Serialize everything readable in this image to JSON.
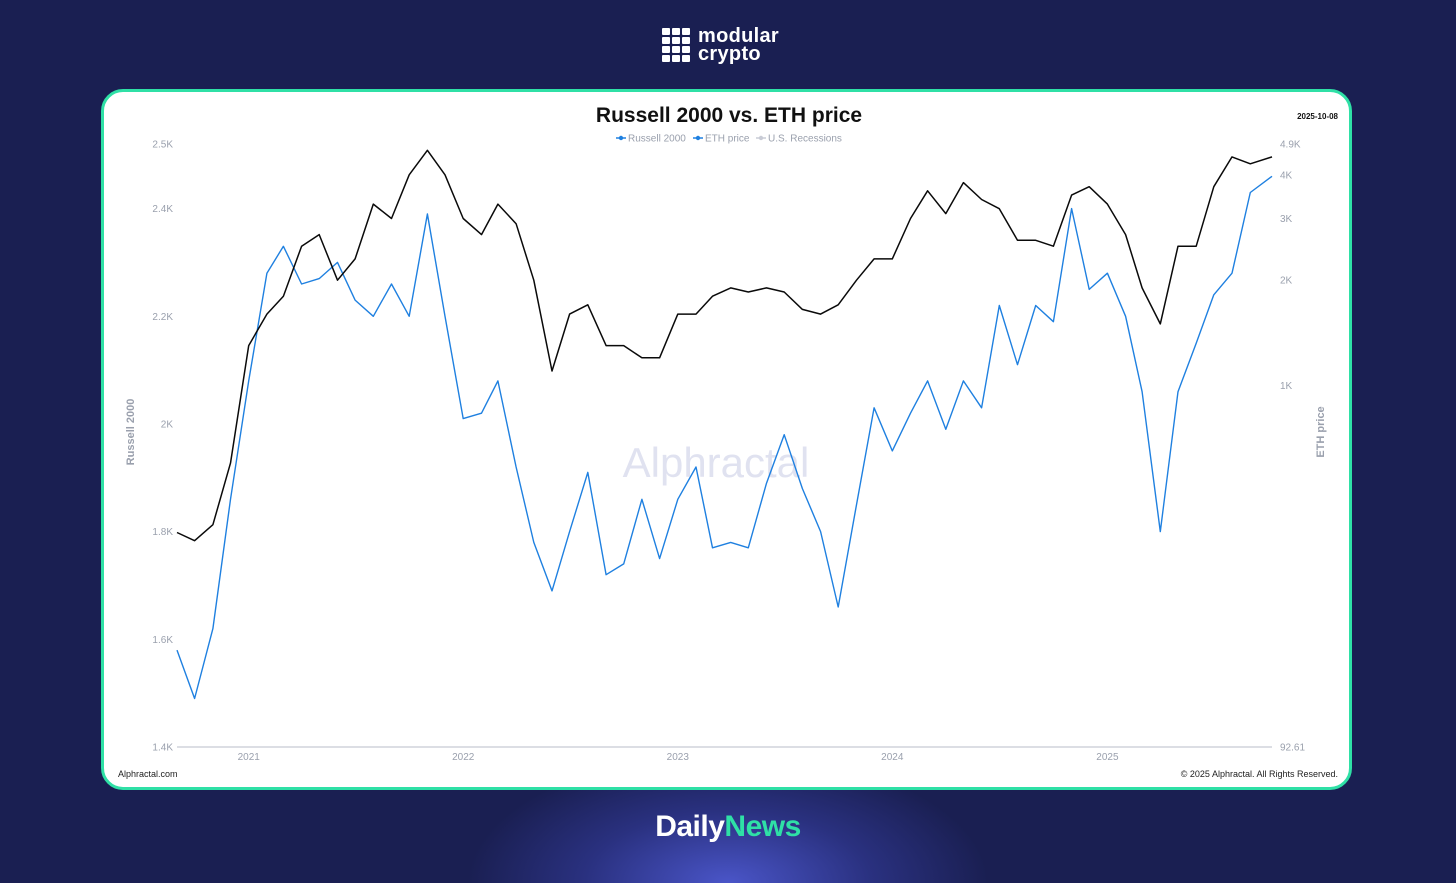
{
  "brand": {
    "line1": "modular",
    "line2": "crypto"
  },
  "footer": {
    "part1": "Daily",
    "part2": "News"
  },
  "colors": {
    "background": "#1a1f52",
    "card_border": "#2fe0a6",
    "russell": "#1f80e0",
    "eth": "#0a0a0a",
    "recessions": "#c9ccd6"
  },
  "chart_data": {
    "type": "line",
    "title": "Russell 2000 vs. ETH price",
    "date": "2025-10-08",
    "watermark": "Alphractal",
    "source": "Alphractal.com",
    "copyright": "© 2025 Alphractal. All Rights Reserved.",
    "legend": [
      "Russell 2000",
      "ETH price",
      "U.S. Recessions"
    ],
    "legend_position": "top-center",
    "grid": false,
    "x_ticks": [
      "2021",
      "2022",
      "2023",
      "2024",
      "2025"
    ],
    "x_range": [
      "2020-09-01",
      "2025-10-08"
    ],
    "y_left": {
      "label": "Russell 2000",
      "ticks": [
        "1.4K",
        "1.6K",
        "1.8K",
        "2K",
        "2.2K",
        "2.4K",
        "2.5K"
      ],
      "tick_values": [
        1400,
        1600,
        1800,
        2000,
        2200,
        2400,
        2520
      ],
      "range": [
        1400,
        2520
      ]
    },
    "y_right": {
      "label": "ETH price",
      "scale": "log",
      "ticks": [
        "92.61",
        "1K",
        "2K",
        "3K",
        "4K",
        "4.9K"
      ],
      "tick_values": [
        92.61,
        1000,
        2000,
        3000,
        4000,
        4900
      ],
      "range": [
        92.61,
        4900
      ]
    },
    "series": [
      {
        "name": "Russell 2000",
        "axis": "left",
        "x": [
          "2020-09-01",
          "2020-10-01",
          "2020-11-01",
          "2020-12-01",
          "2021-01-01",
          "2021-02-01",
          "2021-03-01",
          "2021-04-01",
          "2021-05-01",
          "2021-06-01",
          "2021-07-01",
          "2021-08-01",
          "2021-09-01",
          "2021-10-01",
          "2021-11-01",
          "2021-12-01",
          "2022-01-01",
          "2022-02-01",
          "2022-03-01",
          "2022-04-01",
          "2022-05-01",
          "2022-06-01",
          "2022-07-01",
          "2022-08-01",
          "2022-09-01",
          "2022-10-01",
          "2022-11-01",
          "2022-12-01",
          "2023-01-01",
          "2023-02-01",
          "2023-03-01",
          "2023-04-01",
          "2023-05-01",
          "2023-06-01",
          "2023-07-01",
          "2023-08-01",
          "2023-09-01",
          "2023-10-01",
          "2023-11-01",
          "2023-12-01",
          "2024-01-01",
          "2024-02-01",
          "2024-03-01",
          "2024-04-01",
          "2024-05-01",
          "2024-06-01",
          "2024-07-01",
          "2024-08-01",
          "2024-09-01",
          "2024-10-01",
          "2024-11-01",
          "2024-12-01",
          "2025-01-01",
          "2025-02-01",
          "2025-03-01",
          "2025-04-01",
          "2025-05-01",
          "2025-06-01",
          "2025-07-01",
          "2025-08-01",
          "2025-09-01",
          "2025-10-08"
        ],
        "values": [
          1580,
          1490,
          1620,
          1860,
          2080,
          2280,
          2330,
          2260,
          2270,
          2300,
          2230,
          2200,
          2260,
          2200,
          2390,
          2200,
          2010,
          2020,
          2080,
          1920,
          1780,
          1690,
          1800,
          1910,
          1720,
          1740,
          1860,
          1750,
          1860,
          1920,
          1770,
          1780,
          1770,
          1890,
          1980,
          1880,
          1800,
          1660,
          1850,
          2030,
          1950,
          2020,
          2080,
          1990,
          2080,
          2030,
          2220,
          2110,
          2220,
          2190,
          2400,
          2250,
          2280,
          2200,
          2060,
          1800,
          2060,
          2150,
          2240,
          2280,
          2430,
          2460
        ]
      },
      {
        "name": "ETH price",
        "axis": "right",
        "x": [
          "2020-09-01",
          "2020-10-01",
          "2020-11-01",
          "2020-12-01",
          "2021-01-01",
          "2021-02-01",
          "2021-03-01",
          "2021-04-01",
          "2021-05-01",
          "2021-06-01",
          "2021-07-01",
          "2021-08-01",
          "2021-09-01",
          "2021-10-01",
          "2021-11-01",
          "2021-12-01",
          "2022-01-01",
          "2022-02-01",
          "2022-03-01",
          "2022-04-01",
          "2022-05-01",
          "2022-06-01",
          "2022-07-01",
          "2022-08-01",
          "2022-09-01",
          "2022-10-01",
          "2022-11-01",
          "2022-12-01",
          "2023-01-01",
          "2023-02-01",
          "2023-03-01",
          "2023-04-01",
          "2023-05-01",
          "2023-06-01",
          "2023-07-01",
          "2023-08-01",
          "2023-09-01",
          "2023-10-01",
          "2023-11-01",
          "2023-12-01",
          "2024-01-01",
          "2024-02-01",
          "2024-03-01",
          "2024-04-01",
          "2024-05-01",
          "2024-06-01",
          "2024-07-01",
          "2024-08-01",
          "2024-09-01",
          "2024-10-01",
          "2024-11-01",
          "2024-12-01",
          "2025-01-01",
          "2025-02-01",
          "2025-03-01",
          "2025-04-01",
          "2025-05-01",
          "2025-06-01",
          "2025-07-01",
          "2025-08-01",
          "2025-09-01",
          "2025-10-08"
        ],
        "values": [
          380,
          360,
          400,
          600,
          1300,
          1600,
          1800,
          2500,
          2700,
          2000,
          2300,
          3300,
          3000,
          4000,
          4700,
          4000,
          3000,
          2700,
          3300,
          2900,
          2000,
          1100,
          1600,
          1700,
          1300,
          1300,
          1200,
          1200,
          1600,
          1600,
          1800,
          1900,
          1850,
          1900,
          1850,
          1650,
          1600,
          1700,
          2000,
          2300,
          2300,
          3000,
          3600,
          3100,
          3800,
          3400,
          3200,
          2600,
          2600,
          2500,
          3500,
          3700,
          3300,
          2700,
          1900,
          1500,
          2500,
          2500,
          3700,
          4500,
          4300,
          4500
        ]
      },
      {
        "name": "U.S. Recessions",
        "axis": "left",
        "x": [],
        "values": []
      }
    ]
  }
}
